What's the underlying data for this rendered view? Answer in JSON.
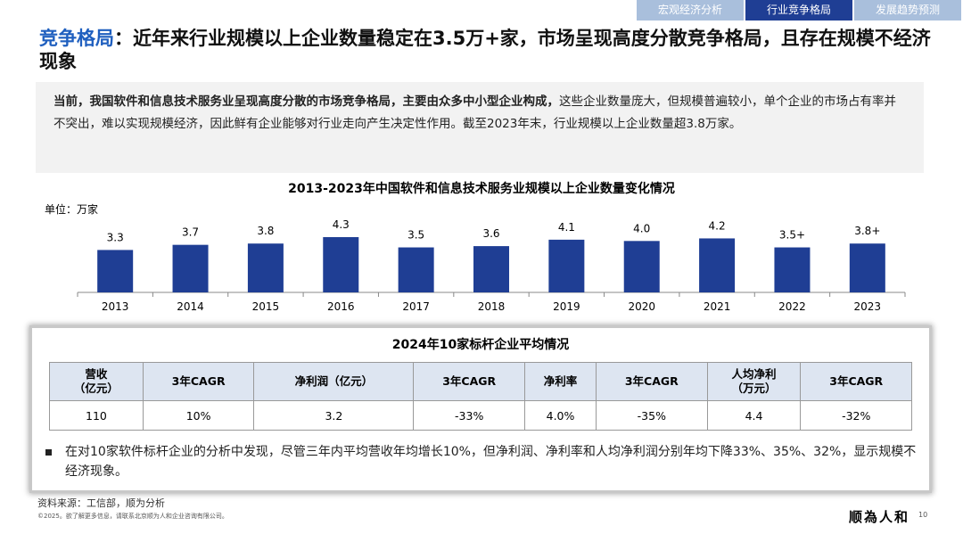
{
  "nav": {
    "tabs": [
      "宏观经济分析",
      "行业竞争格局",
      "发展趋势预测"
    ],
    "active": 1
  },
  "header": {
    "title_highlight": "竞争格局",
    "title_rest": "：近年来行业规模以上企业数量稳定在3.5万+家，市场呈现高度分散竞争格局，且存在规模不经济现象"
  },
  "intro": {
    "bold": "当前，我国软件和信息技术服务业呈现高度分散的市场竞争格局，主要由众多中小型企业构成，",
    "text": "这些企业数量庞大，但规模普遍较小，单个企业的市场占有率并不突出，难以实现规模经济，因此鲜有企业能够对行业走向产生决定性作用。截至2023年末，行业规模以上企业数量超3.8万家。"
  },
  "chart_data": {
    "type": "bar",
    "title": "2013-2023年中国软件和信息技术服务业规模以上企业数量变化情况",
    "unit": "单位：万家",
    "categories": [
      "2013",
      "2014",
      "2015",
      "2016",
      "2017",
      "2018",
      "2019",
      "2020",
      "2021",
      "2022",
      "2023"
    ],
    "values": [
      3.3,
      3.7,
      3.8,
      4.3,
      3.5,
      3.6,
      4.1,
      4.0,
      4.2,
      3.5,
      3.8
    ],
    "value_labels": [
      "3.3",
      "3.7",
      "3.8",
      "4.3",
      "3.5",
      "3.6",
      "4.1",
      "4.0",
      "4.2",
      "3.5+",
      "3.8+"
    ],
    "color": "#1f3e94"
  },
  "table": {
    "title": "2024年10家标杆企业平均情况",
    "headers": [
      "营收\n（亿元）",
      "3年CAGR",
      "净利润（亿元）",
      "3年CAGR",
      "净利率",
      "3年CAGR",
      "人均净利\n（万元）",
      "3年CAGR"
    ],
    "rows": [
      [
        "110",
        "10%",
        "3.2",
        "-33%",
        "4.0%",
        "-35%",
        "4.4",
        "-32%"
      ]
    ],
    "note": "在对10家软件标杆企业的分析中发现，尽管三年内平均营收年均增长10%，但净利润、净利率和人均净利润分别年均下降33%、35%、32%，显示规模不经济现象。"
  },
  "footer": {
    "source": "资料来源：工信部，顺为分析",
    "copyright": "©2025。欲了解更多信息，请联系北京顺为人和企业咨询有限公司。",
    "logo": "顺為人和",
    "page": "10"
  }
}
